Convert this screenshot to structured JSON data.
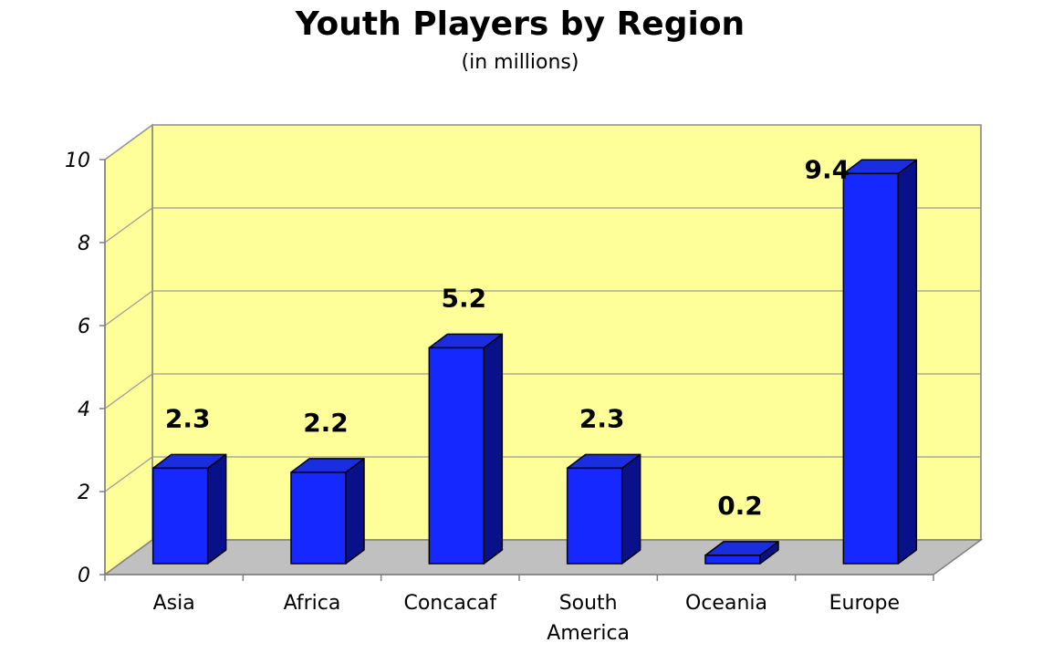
{
  "chart_data": {
    "type": "bar",
    "title": "Youth Players by Region",
    "subtitle": "(in millions)",
    "categories": [
      "Asia",
      "Africa",
      "Concacaf",
      "South America",
      "Oceania",
      "Europe"
    ],
    "category_lines": [
      [
        "Asia"
      ],
      [
        "Africa"
      ],
      [
        "Concacaf"
      ],
      [
        "South",
        "America"
      ],
      [
        "Oceania"
      ],
      [
        "Europe"
      ]
    ],
    "values": [
      2.3,
      2.2,
      5.2,
      2.3,
      0.2,
      9.4
    ],
    "data_labels": [
      "2.3",
      "2.2",
      "5.2",
      "2.3",
      "0.2",
      "9.4"
    ],
    "ylim": [
      0,
      10
    ],
    "yticks": [
      0,
      2,
      4,
      6,
      8,
      10
    ],
    "grid": true,
    "style": "3d",
    "colors": {
      "bar_front": "#1428ff",
      "bar_top": "#1a2ee0",
      "bar_side": "#08108a",
      "back_wall": "#ffff99",
      "floor": "#c0c0c0",
      "gridline": "#9a9a9a"
    }
  }
}
